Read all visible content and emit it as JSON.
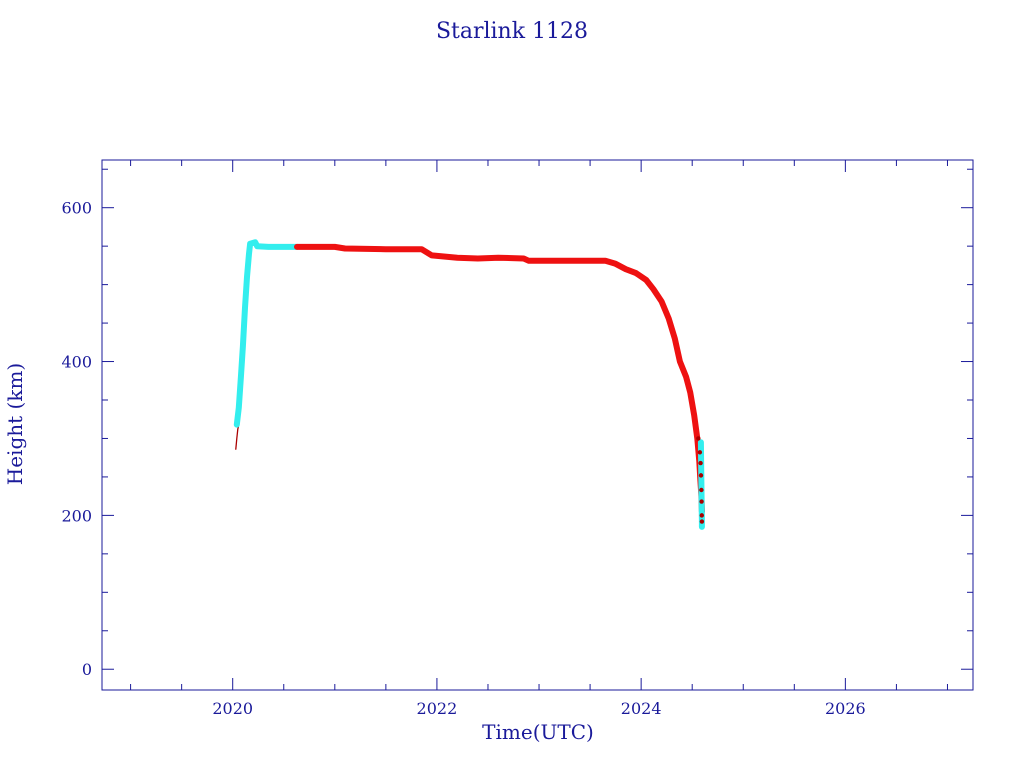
{
  "chart_data": {
    "type": "line",
    "title": "Starlink 1128",
    "xlabel": "Time(UTC)",
    "ylabel": "Height (km)",
    "xlim": [
      2018.72,
      2027.25
    ],
    "ylim": [
      -27,
      662
    ],
    "xticks": [
      2020,
      2022,
      2024,
      2026
    ],
    "yticks": [
      0,
      200,
      400,
      600
    ],
    "grid": false,
    "colors": {
      "axis": "#1a1a9a",
      "cyan": "#33eeee",
      "red": "#ee1111",
      "darkred": "#aa0000"
    },
    "series": [
      {
        "color": "darkred",
        "style": "thin",
        "points": [
          [
            2020.03,
            286
          ],
          [
            2020.04,
            300
          ],
          [
            2020.05,
            312
          ],
          [
            2020.06,
            318
          ]
        ]
      },
      {
        "color": "cyan",
        "style": "thick",
        "points": [
          [
            2020.04,
            318
          ],
          [
            2020.06,
            340
          ],
          [
            2020.08,
            380
          ],
          [
            2020.1,
            420
          ],
          [
            2020.12,
            470
          ],
          [
            2020.14,
            510
          ],
          [
            2020.16,
            540
          ],
          [
            2020.17,
            553
          ],
          [
            2020.22,
            555
          ],
          [
            2020.24,
            550
          ],
          [
            2020.35,
            549
          ],
          [
            2020.5,
            549
          ],
          [
            2020.63,
            549
          ]
        ]
      },
      {
        "color": "red",
        "style": "thick",
        "points": [
          [
            2020.63,
            549
          ],
          [
            2021.0,
            549
          ],
          [
            2021.1,
            547
          ],
          [
            2021.5,
            546
          ],
          [
            2021.85,
            546
          ],
          [
            2021.95,
            538
          ],
          [
            2022.2,
            535
          ],
          [
            2022.4,
            534
          ],
          [
            2022.6,
            535
          ],
          [
            2022.85,
            534
          ],
          [
            2022.9,
            531
          ],
          [
            2023.3,
            531
          ],
          [
            2023.65,
            531
          ],
          [
            2023.75,
            527
          ],
          [
            2023.85,
            520
          ],
          [
            2023.95,
            515
          ],
          [
            2024.05,
            506
          ],
          [
            2024.12,
            494
          ],
          [
            2024.2,
            478
          ],
          [
            2024.27,
            456
          ],
          [
            2024.33,
            430
          ],
          [
            2024.38,
            400
          ],
          [
            2024.44,
            380
          ],
          [
            2024.48,
            360
          ],
          [
            2024.52,
            330
          ],
          [
            2024.55,
            300
          ],
          [
            2024.57,
            270
          ],
          [
            2024.58,
            245
          ],
          [
            2024.59,
            225
          ],
          [
            2024.595,
            205
          ]
        ]
      },
      {
        "color": "cyan",
        "style": "thick",
        "points": [
          [
            2024.585,
            295
          ],
          [
            2024.59,
            240
          ],
          [
            2024.593,
            208
          ],
          [
            2024.595,
            192
          ],
          [
            2024.595,
            185
          ]
        ]
      },
      {
        "color": "darkred",
        "style": "markers",
        "points": [
          [
            2024.56,
            300
          ],
          [
            2024.575,
            282
          ],
          [
            2024.582,
            268
          ],
          [
            2024.586,
            252
          ],
          [
            2024.59,
            233
          ],
          [
            2024.592,
            218
          ],
          [
            2024.594,
            200
          ],
          [
            2024.595,
            192
          ]
        ]
      }
    ]
  }
}
